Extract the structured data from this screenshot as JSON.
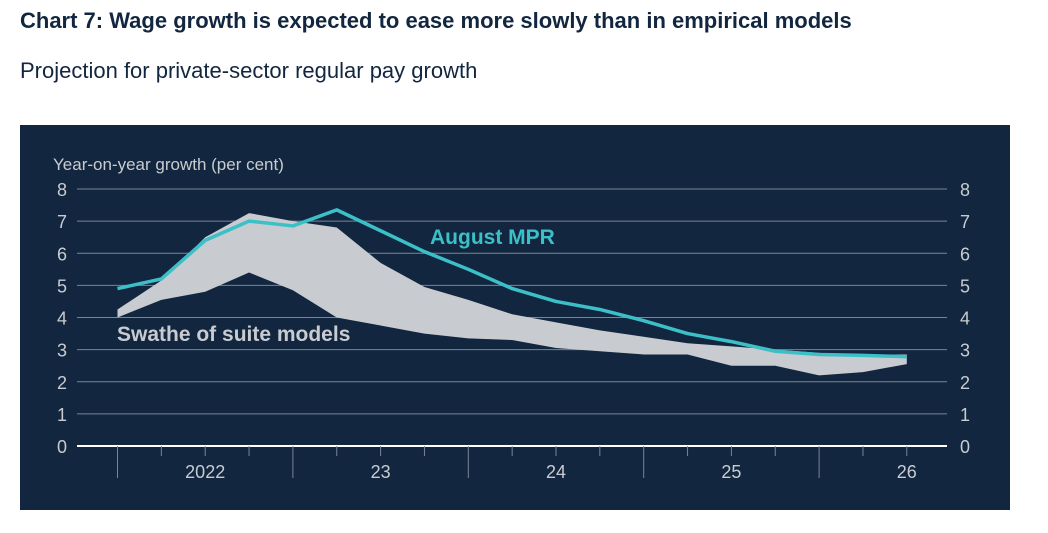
{
  "chart_data": {
    "type": "area",
    "title": "Chart 7: Wage growth is expected to ease more slowly than in empirical models",
    "subtitle": "Projection for private-sector regular pay growth",
    "ylabel": "Year-on-year growth (per cent)",
    "ylim": [
      0,
      8
    ],
    "yticks": [
      "0",
      "1",
      "2",
      "3",
      "4",
      "5",
      "6",
      "7",
      "8"
    ],
    "year_labels": [
      "2022",
      "23",
      "24",
      "25",
      "26"
    ],
    "grid": true,
    "colors": {
      "background": "#12263f",
      "line": "#3cc0c8",
      "swathe": "#c8ccd0",
      "grid": "#7a8596",
      "text": "#c8ccd0"
    },
    "x_quarters": [
      "2022 Q1",
      "2022 Q2",
      "2022 Q3",
      "2022 Q4",
      "2023 Q1",
      "2023 Q2",
      "2023 Q3",
      "2023 Q4",
      "2024 Q1",
      "2024 Q2",
      "2024 Q3",
      "2024 Q4",
      "2025 Q1",
      "2025 Q2",
      "2025 Q3",
      "2025 Q4",
      "2026 Q1",
      "2026 Q2",
      "2026 Q3"
    ],
    "series": [
      {
        "name": "August MPR",
        "type": "line",
        "values": [
          4.9,
          5.2,
          6.4,
          7.0,
          6.85,
          7.35,
          6.7,
          6.05,
          5.5,
          4.9,
          4.5,
          4.25,
          3.9,
          3.5,
          3.25,
          2.95,
          2.85,
          2.82,
          2.78
        ]
      },
      {
        "name": "Swathe of suite models",
        "type": "band",
        "upper": [
          4.25,
          5.15,
          6.5,
          7.25,
          7.0,
          6.8,
          5.7,
          4.95,
          4.55,
          4.1,
          3.85,
          3.6,
          3.4,
          3.2,
          3.1,
          3.0,
          2.9,
          2.85,
          2.85
        ],
        "lower": [
          4.0,
          4.55,
          4.8,
          5.4,
          4.85,
          4.0,
          3.75,
          3.5,
          3.35,
          3.3,
          3.05,
          2.95,
          2.85,
          2.85,
          2.5,
          2.5,
          2.2,
          2.3,
          2.55
        ]
      }
    ]
  }
}
